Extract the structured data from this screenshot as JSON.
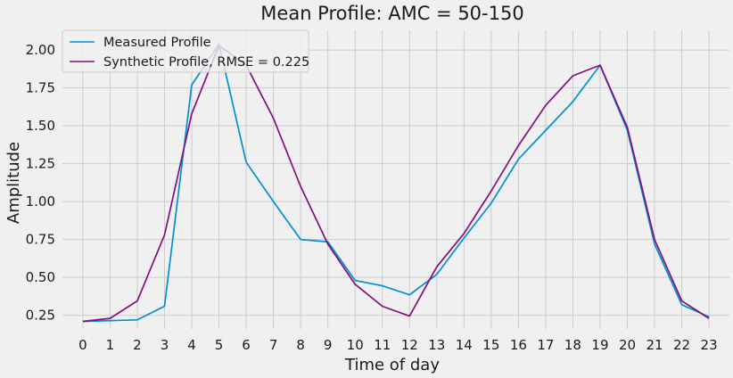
{
  "chart_data": {
    "type": "line",
    "title": "Mean Profile: AMC = 50-150",
    "xlabel": "Time of day",
    "ylabel": "Amplitude",
    "x": [
      0,
      1,
      2,
      3,
      4,
      5,
      6,
      7,
      8,
      9,
      10,
      11,
      12,
      13,
      14,
      15,
      16,
      17,
      18,
      19,
      20,
      21,
      22,
      23
    ],
    "x_tick_labels": [
      "0",
      "1",
      "2",
      "3",
      "4",
      "5",
      "6",
      "7",
      "8",
      "9",
      "10",
      "11",
      "12",
      "13",
      "14",
      "15",
      "16",
      "17",
      "18",
      "19",
      "20",
      "21",
      "22",
      "23"
    ],
    "y_ticks": [
      0.25,
      0.5,
      0.75,
      1.0,
      1.25,
      1.5,
      1.75,
      2.0
    ],
    "y_tick_labels": [
      "0.25",
      "0.50",
      "0.75",
      "1.00",
      "1.25",
      "1.50",
      "1.75",
      "2.00"
    ],
    "xlim": [
      -0.75,
      23.75
    ],
    "ylim": [
      0.16,
      2.13
    ],
    "grid": true,
    "legend_position": "top-left",
    "series": [
      {
        "name": "Measured Profile",
        "color": "#008fd5",
        "values": [
          0.21,
          0.215,
          0.22,
          0.31,
          1.77,
          2.04,
          1.26,
          1.0,
          0.75,
          0.735,
          0.48,
          0.445,
          0.385,
          0.52,
          0.76,
          0.99,
          1.28,
          1.47,
          1.66,
          1.9,
          1.47,
          0.72,
          0.32,
          0.24
        ]
      },
      {
        "name": "Synthetic Profile, RMSE = 0.225",
        "color": "#810f7c",
        "values": [
          0.21,
          0.23,
          0.345,
          0.78,
          1.58,
          2.03,
          1.9,
          1.55,
          1.1,
          0.72,
          0.455,
          0.31,
          0.245,
          0.57,
          0.79,
          1.07,
          1.37,
          1.635,
          1.83,
          1.9,
          1.49,
          0.75,
          0.345,
          0.23
        ]
      }
    ]
  }
}
